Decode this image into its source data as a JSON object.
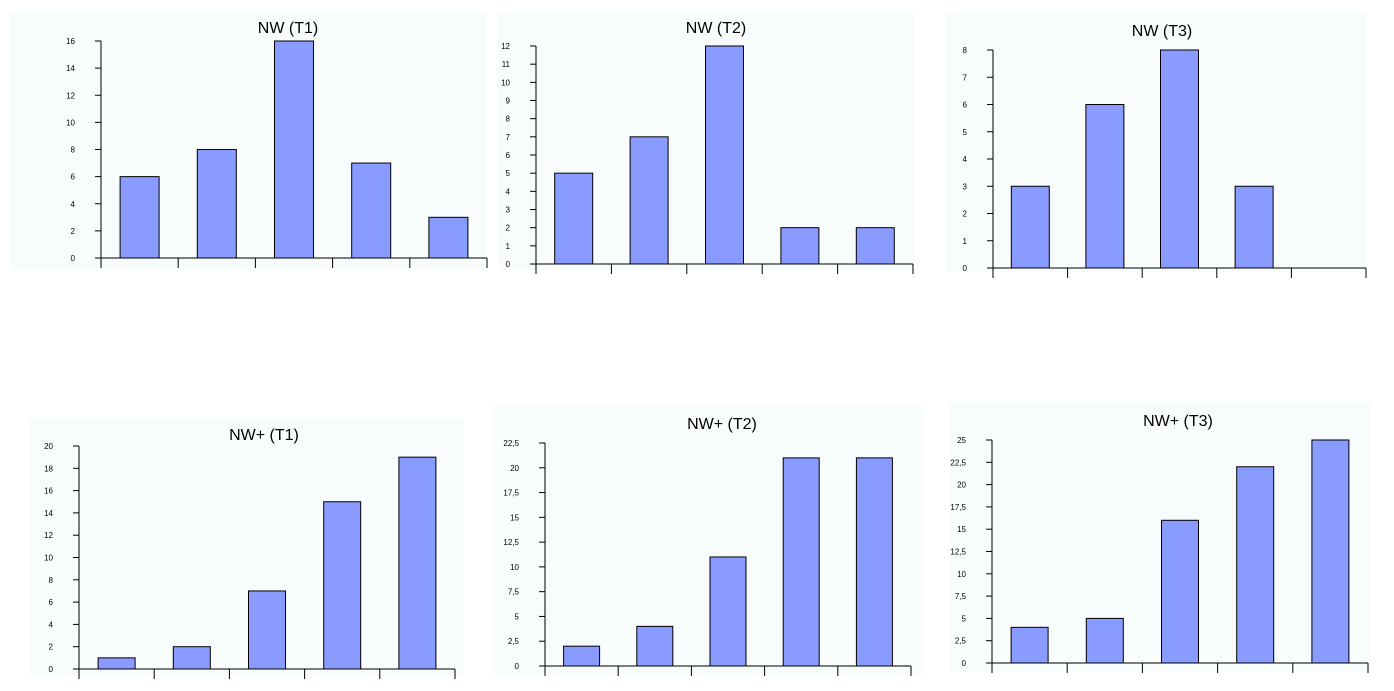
{
  "chart_data": [
    {
      "type": "bar",
      "title": "NW (T1)",
      "categories": [
        "",
        "",
        "",
        "",
        ""
      ],
      "values": [
        6,
        8,
        16,
        7,
        3
      ],
      "ylim": [
        0,
        16
      ],
      "yticks": [
        0,
        2,
        4,
        6,
        8,
        10,
        12,
        14,
        16
      ],
      "ytick_labels": [
        "0",
        "2",
        "4",
        "6",
        "8",
        "10",
        "12",
        "14",
        "16"
      ],
      "xlabel": "",
      "ylabel": ""
    },
    {
      "type": "bar",
      "title": "NW (T2)",
      "categories": [
        "",
        "",
        "",
        "",
        ""
      ],
      "values": [
        5,
        7,
        12,
        2,
        2
      ],
      "ylim": [
        0,
        12
      ],
      "yticks": [
        0,
        1,
        2,
        3,
        4,
        5,
        6,
        7,
        8,
        9,
        10,
        11,
        12
      ],
      "ytick_labels": [
        "0",
        "1",
        "2",
        "3",
        "4",
        "5",
        "6",
        "7",
        "8",
        "9",
        "10",
        "11",
        "12"
      ],
      "xlabel": "",
      "ylabel": ""
    },
    {
      "type": "bar",
      "title": "NW (T3)",
      "categories": [
        "",
        "",
        "",
        "",
        ""
      ],
      "values": [
        3,
        6,
        8,
        3,
        0
      ],
      "ylim": [
        0,
        8
      ],
      "yticks": [
        0,
        1,
        2,
        3,
        4,
        5,
        6,
        7,
        8
      ],
      "ytick_labels": [
        "0",
        "1",
        "2",
        "3",
        "4",
        "5",
        "6",
        "7",
        "8"
      ],
      "xlabel": "",
      "ylabel": ""
    },
    {
      "type": "bar",
      "title": "NW+ (T1)",
      "categories": [
        "",
        "",
        "",
        "",
        ""
      ],
      "values": [
        1,
        2,
        7,
        15,
        19
      ],
      "ylim": [
        0,
        20
      ],
      "yticks": [
        0,
        2,
        4,
        6,
        8,
        10,
        12,
        14,
        16,
        18,
        20
      ],
      "ytick_labels": [
        "0",
        "2",
        "4",
        "6",
        "8",
        "10",
        "12",
        "14",
        "16",
        "18",
        "20"
      ],
      "xlabel": "",
      "ylabel": ""
    },
    {
      "type": "bar",
      "title": "NW+ (T2)",
      "categories": [
        "",
        "",
        "",
        "",
        ""
      ],
      "values": [
        2,
        4,
        11,
        21,
        21
      ],
      "ylim": [
        0,
        22.5
      ],
      "yticks": [
        0,
        2.5,
        5,
        7.5,
        10,
        12.5,
        15,
        17.5,
        20,
        22.5
      ],
      "ytick_labels": [
        "0",
        "2,5",
        "5",
        "7,5",
        "10",
        "12,5",
        "15",
        "17,5",
        "20",
        "22,5"
      ],
      "xlabel": "",
      "ylabel": ""
    },
    {
      "type": "bar",
      "title": "NW+ (T3)",
      "categories": [
        "",
        "",
        "",
        "",
        ""
      ],
      "values": [
        4,
        5,
        16,
        22,
        25
      ],
      "ylim": [
        0,
        25
      ],
      "yticks": [
        0,
        2.5,
        5,
        7.5,
        10,
        12.5,
        15,
        17.5,
        20,
        22.5,
        25
      ],
      "ytick_labels": [
        "0",
        "2,5",
        "5",
        "7,5",
        "10",
        "12,5",
        "15",
        "17,5",
        "20",
        "22,5",
        "25"
      ],
      "xlabel": "",
      "ylabel": ""
    }
  ],
  "colors": {
    "bar_fill": "#8a9bff",
    "bar_stroke": "#000000",
    "panel_background": "#f9fcfd"
  }
}
